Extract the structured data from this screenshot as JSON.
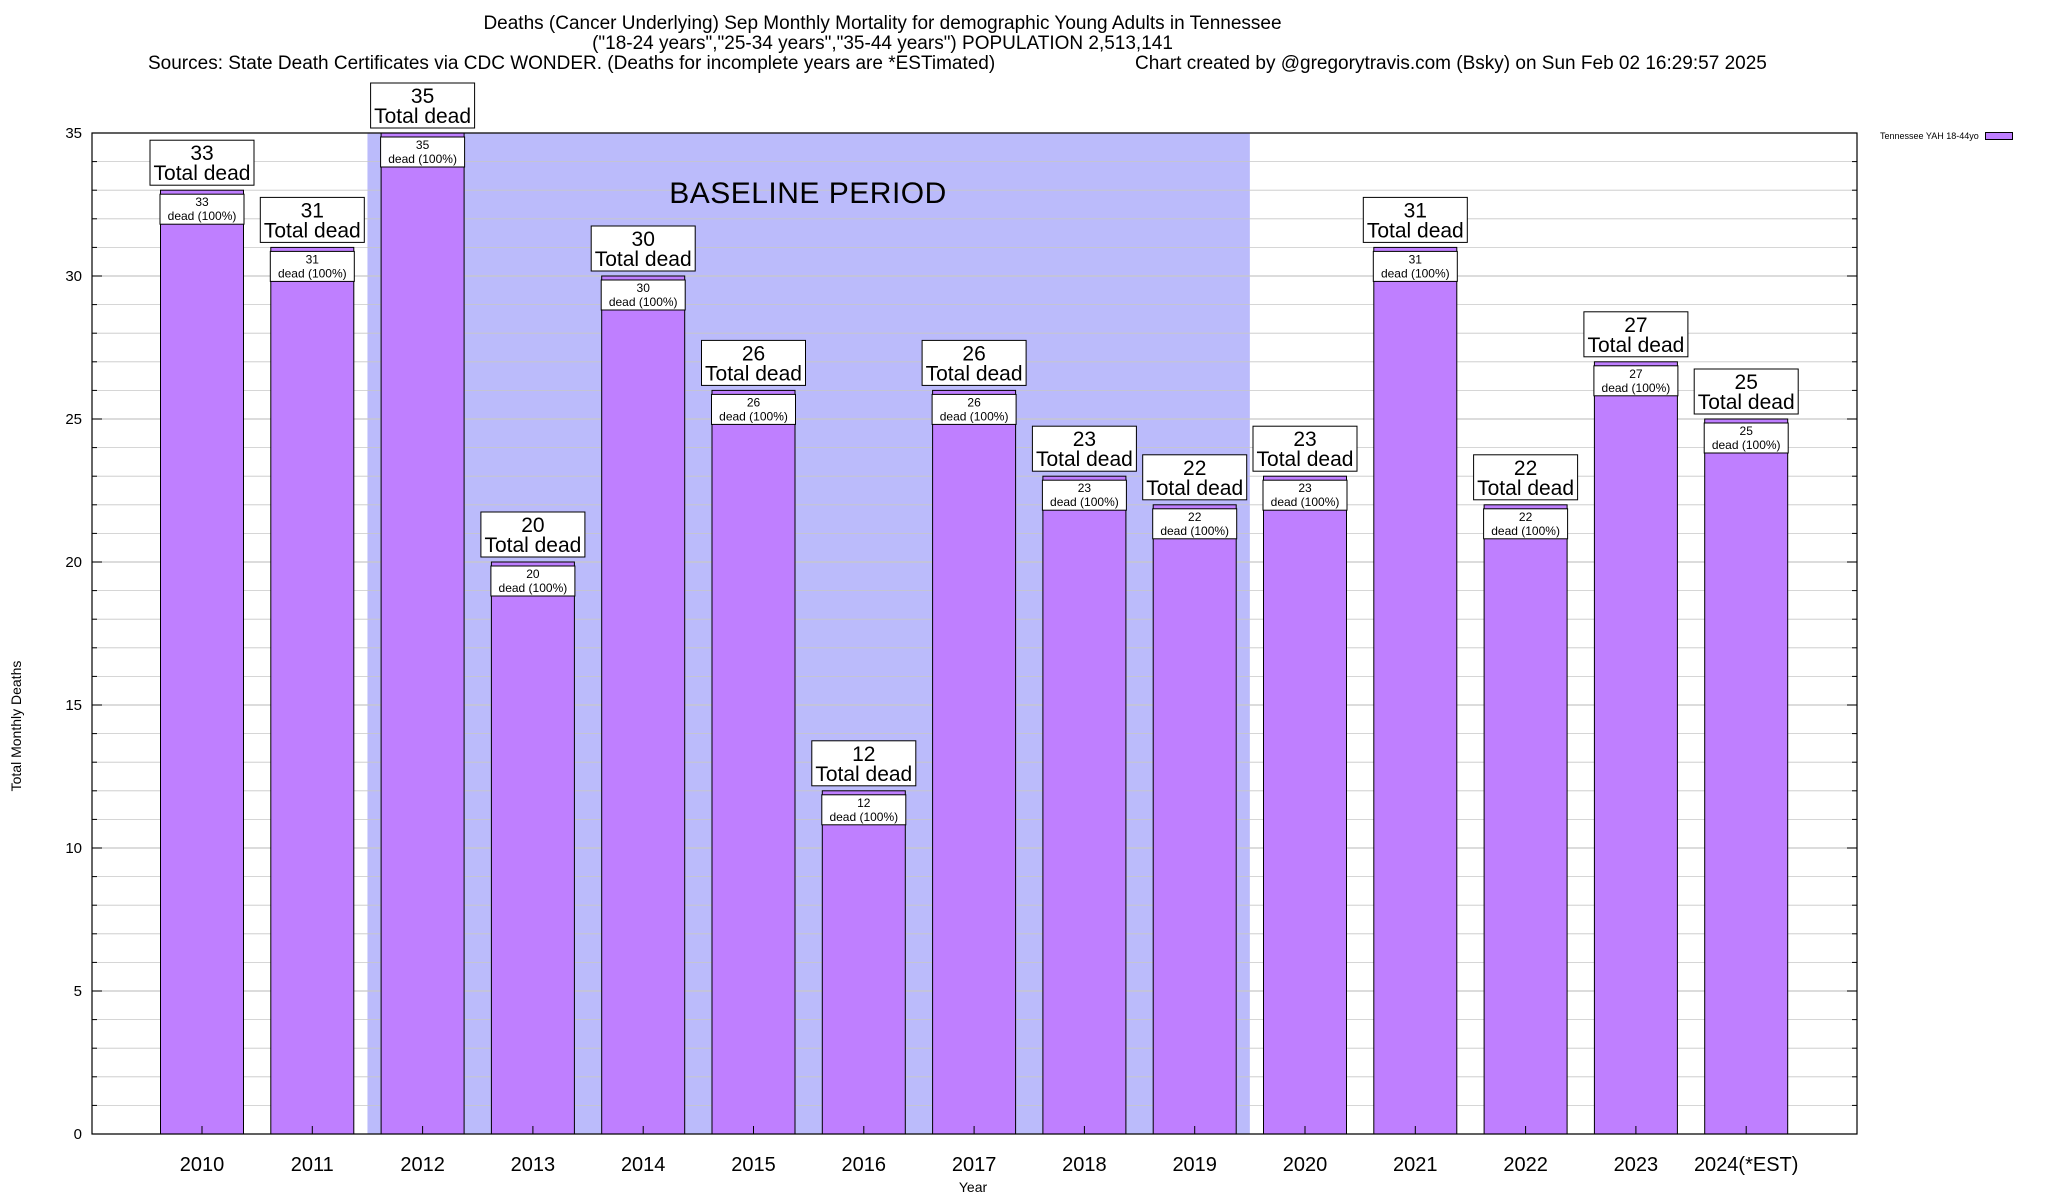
{
  "header": {
    "title_line1": "Deaths (Cancer Underlying) Sep Monthly Mortality for demographic Young Adults in Tennessee",
    "title_line2": "(\"18-24 years\",\"25-34 years\",\"35-44 years\") POPULATION 2,513,141",
    "sources": "Sources: State Death Certificates via CDC WONDER. (Deaths for incomplete years are *ESTimated)",
    "credit": "Chart created by @gregorytravis.com (Bsky) on Sun Feb 02 16:29:57 2025"
  },
  "legend": {
    "label": "Tennessee YAH 18-44yo"
  },
  "annotation": {
    "baseline": "BASELINE PERIOD"
  },
  "colors": {
    "bar": "#bf7fff",
    "baseline_band": "#bbbbfb",
    "grid": "#c8c8c8"
  },
  "chart_data": {
    "type": "bar",
    "title": "Deaths (Cancer Underlying) Sep Monthly Mortality for demographic Young Adults in Tennessee",
    "subtitle": "(\"18-24 years\",\"25-34 years\",\"35-44 years\") POPULATION 2,513,141",
    "xlabel": "Year",
    "ylabel": "Total Monthly Deaths",
    "categories": [
      "2010",
      "2011",
      "2012",
      "2013",
      "2014",
      "2015",
      "2016",
      "2017",
      "2018",
      "2019",
      "2020",
      "2021",
      "2022",
      "2023",
      "2024(*EST)"
    ],
    "series": [
      {
        "name": "Tennessee YAH 18-44yo",
        "values": [
          33,
          31,
          35,
          20,
          30,
          26,
          12,
          26,
          23,
          22,
          23,
          31,
          22,
          27,
          25
        ]
      }
    ],
    "ylim": [
      0,
      35
    ],
    "yticks": [
      0,
      5,
      10,
      15,
      20,
      25,
      30,
      35
    ],
    "grid": true,
    "legend_position": "top-right",
    "baseline_period": [
      "2012",
      "2019"
    ],
    "top_label_suffix": "Total dead",
    "inner_label_suffix": "dead (100%)"
  }
}
